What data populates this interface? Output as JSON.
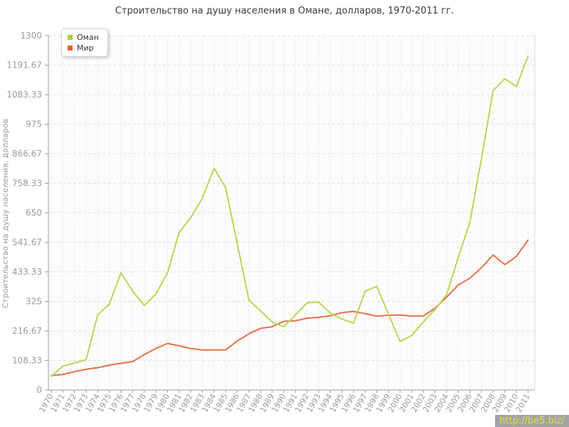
{
  "title": "Строительство на душу населения в Омане, долларов, 1970-2011 гг.",
  "watermark": "http://be5.biz/",
  "legend": {
    "items": [
      {
        "label": "Оман",
        "color": "#aed02f"
      },
      {
        "label": "Мир",
        "color": "#e2622d"
      }
    ]
  },
  "y_axis": {
    "label": "Строительство на душу населения, долларов",
    "ticks": [
      "0",
      "108.33",
      "216.67",
      "325",
      "433.33",
      "541.67",
      "650",
      "758.33",
      "866.67",
      "975",
      "1083.33",
      "1191.67",
      "1300"
    ]
  },
  "chart_data": {
    "type": "line",
    "title": "Строительство на душу населения в Омане, долларов, 1970-2011 гг.",
    "xlabel": "",
    "ylabel": "Строительство на душу населения, долларов",
    "ylim": [
      0,
      1300
    ],
    "y_tick_step": 108.33,
    "grid": true,
    "legend_position": "top-left",
    "x": [
      1970,
      1971,
      1972,
      1973,
      1974,
      1975,
      1976,
      1977,
      1978,
      1979,
      1980,
      1981,
      1982,
      1983,
      1984,
      1985,
      1986,
      1987,
      1988,
      1989,
      1990,
      1991,
      1992,
      1993,
      1994,
      1995,
      1996,
      1997,
      1998,
      1999,
      2000,
      2001,
      2002,
      2003,
      2004,
      2005,
      2006,
      2007,
      2008,
      2009,
      2010,
      2011
    ],
    "series": [
      {
        "name": "Оман",
        "color": "#bdd457",
        "values": [
          50,
          88,
          99,
          111,
          276,
          315,
          430,
          363,
          310,
          352,
          430,
          578,
          632,
          704,
          814,
          742,
          536,
          330,
          290,
          249,
          232,
          275,
          320,
          322,
          282,
          260,
          245,
          363,
          380,
          278,
          178,
          200,
          250,
          295,
          350,
          486,
          615,
          850,
          1098,
          1142,
          1113,
          1224
        ]
      },
      {
        "name": "Мир",
        "color": "#e4714a",
        "values": [
          53,
          57,
          67,
          76,
          82,
          91,
          98,
          104,
          130,
          152,
          171,
          162,
          152,
          147,
          147,
          147,
          180,
          206,
          226,
          232,
          252,
          254,
          263,
          267,
          272,
          284,
          288,
          280,
          271,
          274,
          275,
          271,
          271,
          300,
          341,
          385,
          410,
          449,
          495,
          460,
          490,
          550
        ]
      }
    ]
  }
}
